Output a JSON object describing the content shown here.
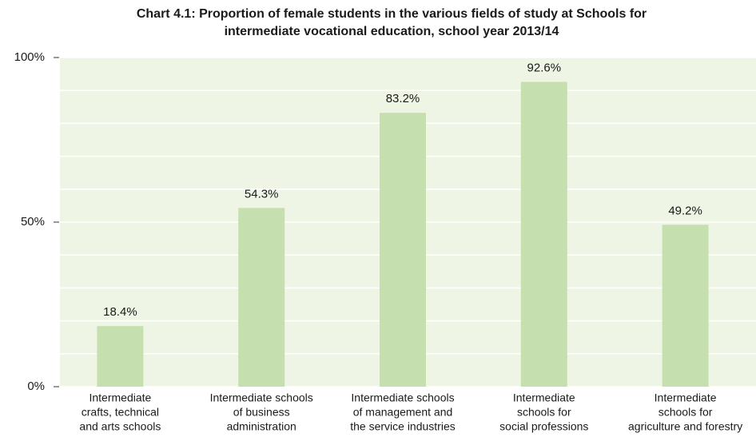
{
  "chart_data": {
    "type": "bar",
    "title": [
      "Chart 4.1:  Proportion of female students in the various fields of study at Schools for",
      "intermediate vocational education, school year 2013/14"
    ],
    "categories": [
      [
        "Intermediate",
        "crafts, technical",
        "and arts schools"
      ],
      [
        "Intermediate schools",
        "of business",
        "administration"
      ],
      [
        "Intermediate schools",
        "of management and",
        "the service industries"
      ],
      [
        "Intermediate",
        "schools for",
        "social professions"
      ],
      [
        "Intermediate",
        "schools for",
        "agriculture and forestry"
      ]
    ],
    "values": [
      18.4,
      54.3,
      83.2,
      92.6,
      49.2
    ],
    "value_labels": [
      "18.4%",
      "54.3%",
      "83.2%",
      "92.6%",
      "49.2%"
    ],
    "color": "#c6dfae",
    "background": "#eef5e5",
    "ylim": [
      0,
      100
    ],
    "yticks": [
      {
        "value": 0,
        "label": "0%"
      },
      {
        "value": 50,
        "label": "50%"
      },
      {
        "value": 100,
        "label": "100%"
      }
    ],
    "minor_gridlines": [
      10,
      20,
      30,
      40,
      60,
      70,
      80,
      90
    ],
    "grid": true
  }
}
